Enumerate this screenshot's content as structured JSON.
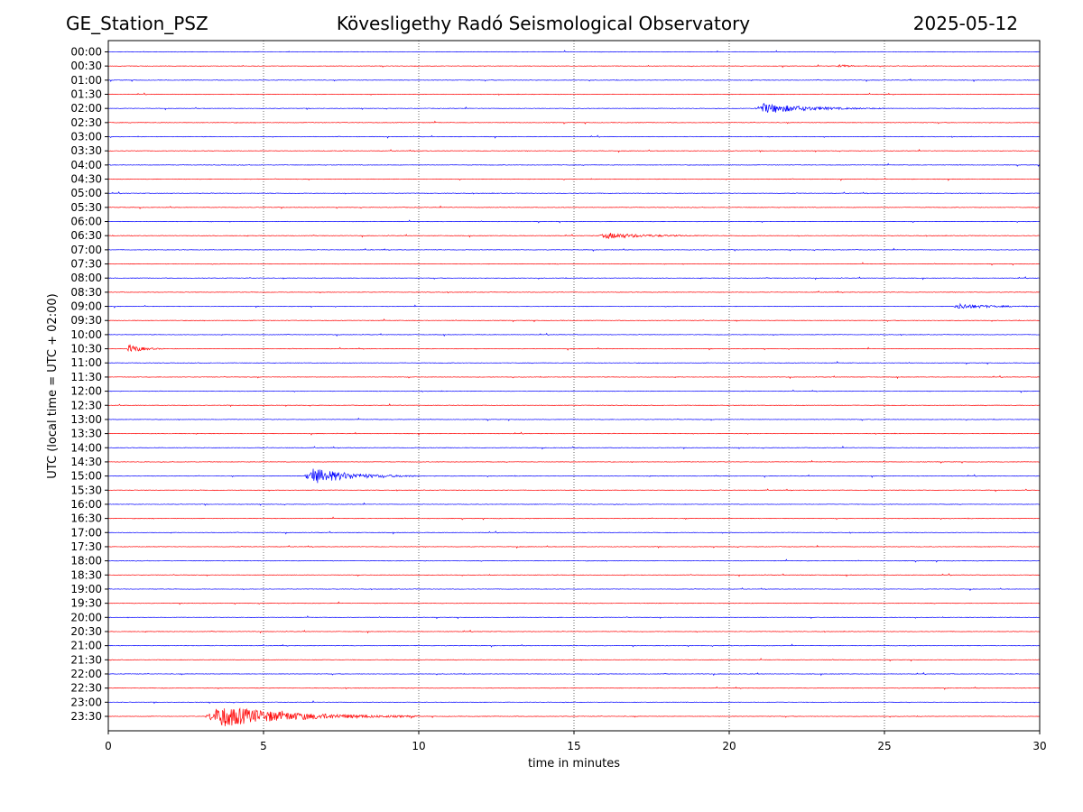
{
  "header": {
    "station": "GE_Station_PSZ",
    "observatory": "Kövesligethy Radó Seismological Observatory",
    "date": "2025-05-12"
  },
  "chart_data": {
    "type": "line",
    "title": "Kövesligethy Radó Seismological Observatory",
    "xlabel": "time in minutes",
    "ylabel": "UTC (local time = UTC + 02:00)",
    "xlim": [
      0,
      30
    ],
    "x_ticks": [
      0,
      5,
      10,
      15,
      20,
      25,
      30
    ],
    "vertical_grid": "dotted",
    "trace_colors": [
      "#0000ff",
      "#ff0000"
    ],
    "rows": [
      "00:00",
      "00:30",
      "01:00",
      "01:30",
      "02:00",
      "02:30",
      "03:00",
      "03:30",
      "04:00",
      "04:30",
      "05:00",
      "05:30",
      "06:00",
      "06:30",
      "07:00",
      "07:30",
      "08:00",
      "08:30",
      "09:00",
      "09:30",
      "10:00",
      "10:30",
      "11:00",
      "11:30",
      "12:00",
      "12:30",
      "13:00",
      "13:30",
      "14:00",
      "14:30",
      "15:00",
      "15:30",
      "16:00",
      "16:30",
      "17:00",
      "17:30",
      "18:00",
      "18:30",
      "19:00",
      "19:30",
      "20:00",
      "20:30",
      "21:00",
      "21:30",
      "22:00",
      "22:30",
      "23:00",
      "23:30"
    ],
    "events": [
      {
        "row": "00:30",
        "start_min": 23.5,
        "end_min": 24.3,
        "peak": 0.12
      },
      {
        "row": "02:00",
        "start_min": 20.8,
        "end_min": 25.0,
        "peak": 0.35
      },
      {
        "row": "06:30",
        "start_min": 15.8,
        "end_min": 19.5,
        "peak": 0.2
      },
      {
        "row": "09:00",
        "start_min": 27.2,
        "end_min": 30.0,
        "peak": 0.18
      },
      {
        "row": "10:30",
        "start_min": 0.6,
        "end_min": 1.8,
        "peak": 0.3
      },
      {
        "row": "15:00",
        "start_min": 6.3,
        "end_min": 10.0,
        "peak": 0.55
      },
      {
        "row": "23:30",
        "start_min": 3.1,
        "end_min": 10.0,
        "peak": 0.75
      }
    ]
  }
}
